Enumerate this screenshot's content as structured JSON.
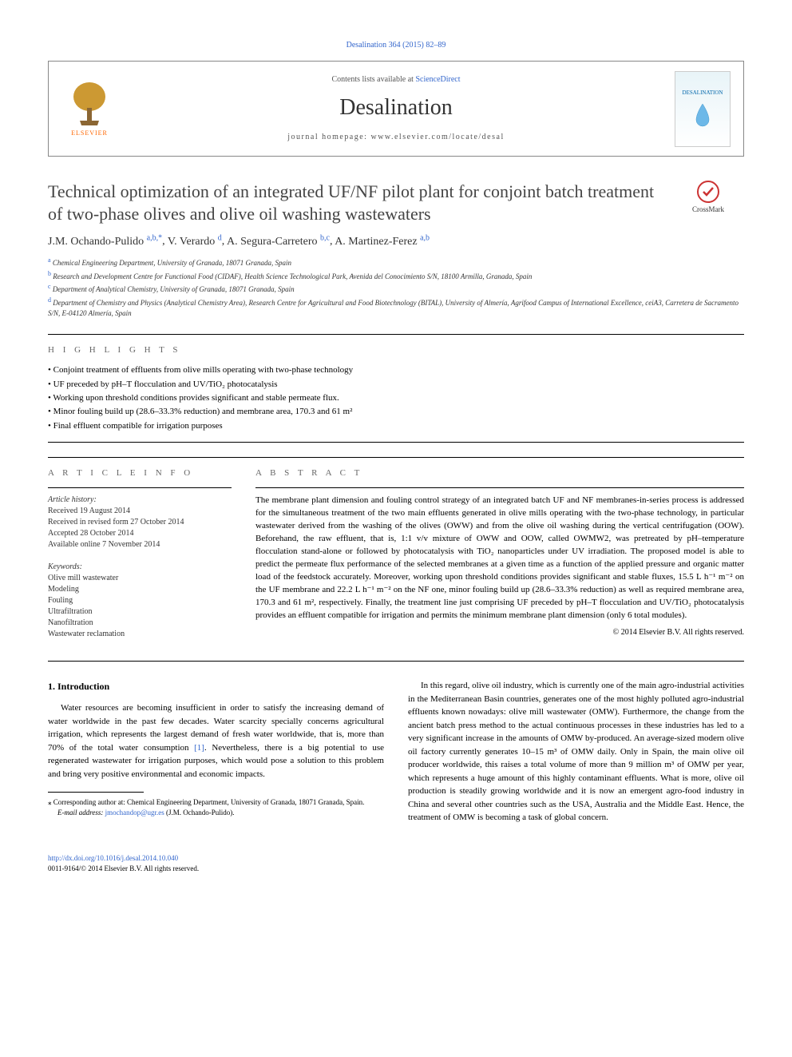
{
  "journal_ref": "Desalination 364 (2015) 82–89",
  "header": {
    "publisher": "ELSEVIER",
    "contents_prefix": "Contents lists available at ",
    "contents_link": "ScienceDirect",
    "journal_name": "Desalination",
    "homepage_prefix": "journal homepage: ",
    "homepage_url": "www.elsevier.com/locate/desal",
    "cover_label": "DESALINATION"
  },
  "crossmark": "CrossMark",
  "title": "Technical optimization of an integrated UF/NF pilot plant for conjoint batch treatment of two-phase olives and olive oil washing wastewaters",
  "authors": [
    {
      "name": "J.M. Ochando-Pulido",
      "aff": "a,b,",
      "star": true
    },
    {
      "name": "V. Verardo",
      "aff": "d"
    },
    {
      "name": "A. Segura-Carretero",
      "aff": "b,c"
    },
    {
      "name": "A. Martinez-Ferez",
      "aff": "a,b"
    }
  ],
  "affiliations": [
    {
      "sup": "a",
      "text": "Chemical Engineering Department, University of Granada, 18071 Granada, Spain"
    },
    {
      "sup": "b",
      "text": "Research and Development Centre for Functional Food (CIDAF), Health Science Technological Park, Avenida del Conocimiento S/N, 18100 Armilla, Granada, Spain"
    },
    {
      "sup": "c",
      "text": "Department of Analytical Chemistry, University of Granada, 18071 Granada, Spain"
    },
    {
      "sup": "d",
      "text": "Department of Chemistry and Physics (Analytical Chemistry Area), Research Centre for Agricultural and Food Biotechnology (BITAL), University of Almería, Agrifood Campus of International Excellence, ceiA3, Carretera de Sacramento S/N, E-04120 Almería, Spain"
    }
  ],
  "highlights_heading": "H I G H L I G H T S",
  "highlights": [
    "Conjoint treatment of effluents from olive mills operating with two-phase technology",
    "UF preceded by pH–T flocculation and UV/TiO₂ photocatalysis",
    "Working upon threshold conditions provides significant and stable permeate flux.",
    "Minor fouling build up (28.6–33.3% reduction) and membrane area, 170.3 and 61 m²",
    "Final effluent compatible for irrigation purposes"
  ],
  "article_info_heading": "A R T I C L E   I N F O",
  "abstract_heading": "A B S T R A C T",
  "history": {
    "label": "Article history:",
    "received": "Received 19 August 2014",
    "revised": "Received in revised form 27 October 2014",
    "accepted": "Accepted 28 October 2014",
    "online": "Available online 7 November 2014"
  },
  "keywords": {
    "label": "Keywords:",
    "items": [
      "Olive mill wastewater",
      "Modeling",
      "Fouling",
      "Ultrafiltration",
      "Nanofiltration",
      "Wastewater reclamation"
    ]
  },
  "abstract": "The membrane plant dimension and fouling control strategy of an integrated batch UF and NF membranes-in-series process is addressed for the simultaneous treatment of the two main effluents generated in olive mills operating with the two-phase technology, in particular wastewater derived from the washing of the olives (OWW) and from the olive oil washing during the vertical centrifugation (OOW). Beforehand, the raw effluent, that is, 1:1 v/v mixture of OWW and OOW, called OWMW2, was pretreated by pH–temperature flocculation stand-alone or followed by photocatalysis with TiO₂ nanoparticles under UV irradiation. The proposed model is able to predict the permeate flux performance of the selected membranes at a given time as a function of the applied pressure and organic matter load of the feedstock accurately. Moreover, working upon threshold conditions provides significant and stable fluxes, 15.5 L h⁻¹ m⁻² on the UF membrane and 22.2 L h⁻¹ m⁻² on the NF one, minor fouling build up (28.6–33.3% reduction) as well as required membrane area, 170.3 and 61 m², respectively. Finally, the treatment line just comprising UF preceded by pH–T flocculation and UV/TiO₂ photocatalysis provides an effluent compatible for irrigation and permits the minimum membrane plant dimension (only 6 total modules).",
  "abstract_copyright": "© 2014 Elsevier B.V. All rights reserved.",
  "intro_heading": "1. Introduction",
  "intro_col1_p1": "Water resources are becoming insufficient in order to satisfy the increasing demand of water worldwide in the past few decades. Water scarcity specially concerns agricultural irrigation, which represents the largest demand of fresh water worldwide, that is, more than 70% of the total water consumption [1]. Nevertheless, there is a big potential to use regenerated wastewater for irrigation purposes, which would pose a solution to this problem and bring very positive environmental and economic impacts.",
  "intro_col2_p1": "In this regard, olive oil industry, which is currently one of the main agro-industrial activities in the Mediterranean Basin countries, generates one of the most highly polluted agro-industrial effluents known nowadays: olive mill wastewater (OMW). Furthermore, the change from the ancient batch press method to the actual continuous processes in these industries has led to a very significant increase in the amounts of OMW by-produced. An average-sized modern olive oil factory currently generates 10–15 m³ of OMW daily. Only in Spain, the main olive oil producer worldwide, this raises a total volume of more than 9 million m³ of OMW per year, which represents a huge amount of this highly contaminant effluents. What is more, olive oil production is steadily growing worldwide and it is now an emergent agro-food industry in China and several other countries such as the USA, Australia and the Middle East. Hence, the treatment of OMW is becoming a task of global concern.",
  "footnote": {
    "star_label": "⁎",
    "corresponding": "Corresponding author at: Chemical Engineering Department, University of Granada, 18071 Granada, Spain.",
    "email_label": "E-mail address:",
    "email": "jmochandop@ugr.es",
    "email_person": "(J.M. Ochando-Pulido)."
  },
  "footer": {
    "doi": "http://dx.doi.org/10.1016/j.desal.2014.10.040",
    "issn_copyright": "0011-9164/© 2014 Elsevier B.V. All rights reserved."
  },
  "colors": {
    "link": "#3366cc",
    "elsevier_orange": "#ff6600",
    "crossmark_red": "#cc3333",
    "text": "#000000",
    "heading_grey": "#666666"
  }
}
